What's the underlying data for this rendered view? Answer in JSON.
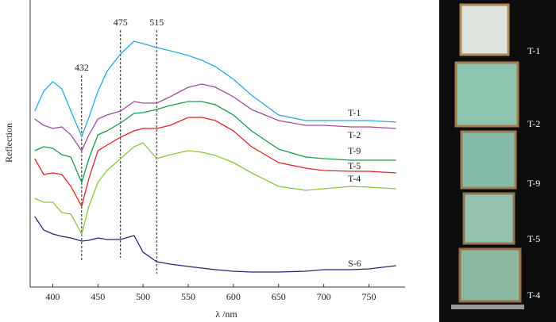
{
  "chart_data": {
    "type": "line",
    "x_label": "λ /nm",
    "y_label": "Reflection",
    "x": [
      380,
      390,
      400,
      410,
      420,
      432,
      440,
      450,
      460,
      475,
      490,
      500,
      515,
      530,
      550,
      565,
      580,
      600,
      620,
      650,
      680,
      700,
      730,
      750,
      780
    ],
    "series": [
      {
        "name": "T-1",
        "color": "#29a9e0",
        "values": [
          222,
          247,
          259,
          250,
          222,
          190,
          214,
          247,
          272,
          294,
          310,
          307,
          302,
          298,
          292,
          286,
          278,
          262,
          242,
          217,
          210,
          210,
          210,
          210,
          208
        ]
      },
      {
        "name": "T-2",
        "color": "#9b4f9b",
        "values": [
          212,
          204,
          200,
          202,
          192,
          172,
          192,
          212,
          217,
          222,
          234,
          232,
          232,
          240,
          252,
          256,
          252,
          240,
          224,
          210,
          204,
          204,
          202,
          202,
          200
        ]
      },
      {
        "name": "T-9",
        "color": "#1a9a4a",
        "values": [
          172,
          177,
          175,
          167,
          164,
          132,
          162,
          192,
          197,
          207,
          219,
          220,
          224,
          229,
          234,
          234,
          230,
          217,
          197,
          174,
          164,
          162,
          160,
          160,
          160
        ]
      },
      {
        "name": "T-5",
        "color": "#e02525",
        "values": [
          162,
          142,
          144,
          142,
          127,
          102,
          137,
          172,
          179,
          189,
          197,
          200,
          200,
          204,
          214,
          214,
          210,
          197,
          177,
          157,
          150,
          147,
          146,
          146,
          144
        ]
      },
      {
        "name": "T-4",
        "color": "#8cc63f",
        "values": [
          112,
          107,
          107,
          94,
          92,
          67,
          102,
          132,
          147,
          162,
          177,
          182,
          162,
          167,
          172,
          170,
          166,
          157,
          144,
          127,
          122,
          124,
          127,
          126,
          124
        ]
      },
      {
        "name": "S-6",
        "color": "#1e2a78",
        "values": [
          89,
          72,
          67,
          64,
          62,
          58,
          59,
          62,
          60,
          60,
          65,
          44,
          32,
          29,
          26,
          24,
          22,
          20,
          19,
          19,
          20,
          22,
          22,
          23,
          27
        ]
      }
    ],
    "xlim": [
      375,
      790
    ],
    "xticks": [
      400,
      450,
      500,
      550,
      600,
      650,
      700,
      750
    ],
    "ylim": [
      0,
      362
    ],
    "vlines": [
      432,
      475,
      515
    ]
  },
  "photo": {
    "labels": [
      "T-1",
      "T-2",
      "T-9",
      "T-5",
      "T-4"
    ]
  }
}
